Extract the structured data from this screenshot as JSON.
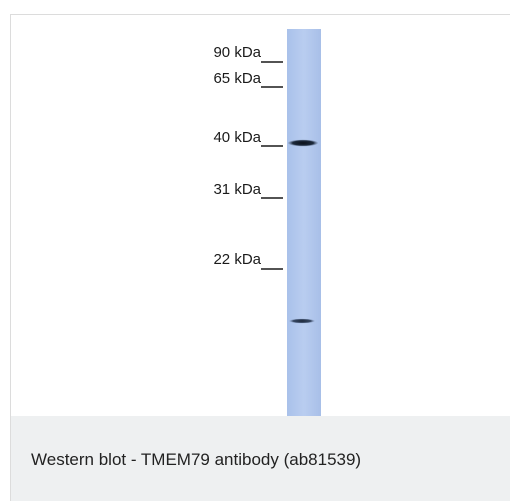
{
  "figure": {
    "markers": [
      {
        "label": "90 kDa"
      },
      {
        "label": "65 kDa"
      },
      {
        "label": "40 kDa"
      },
      {
        "label": "31 kDa"
      },
      {
        "label": "22 kDa"
      }
    ],
    "colors": {
      "lane": "#b3c9ec",
      "band": "#0d1420",
      "tick": "#1a1a1a"
    }
  },
  "caption": {
    "text": "Western blot - TMEM79 antibody (ab81539)"
  }
}
